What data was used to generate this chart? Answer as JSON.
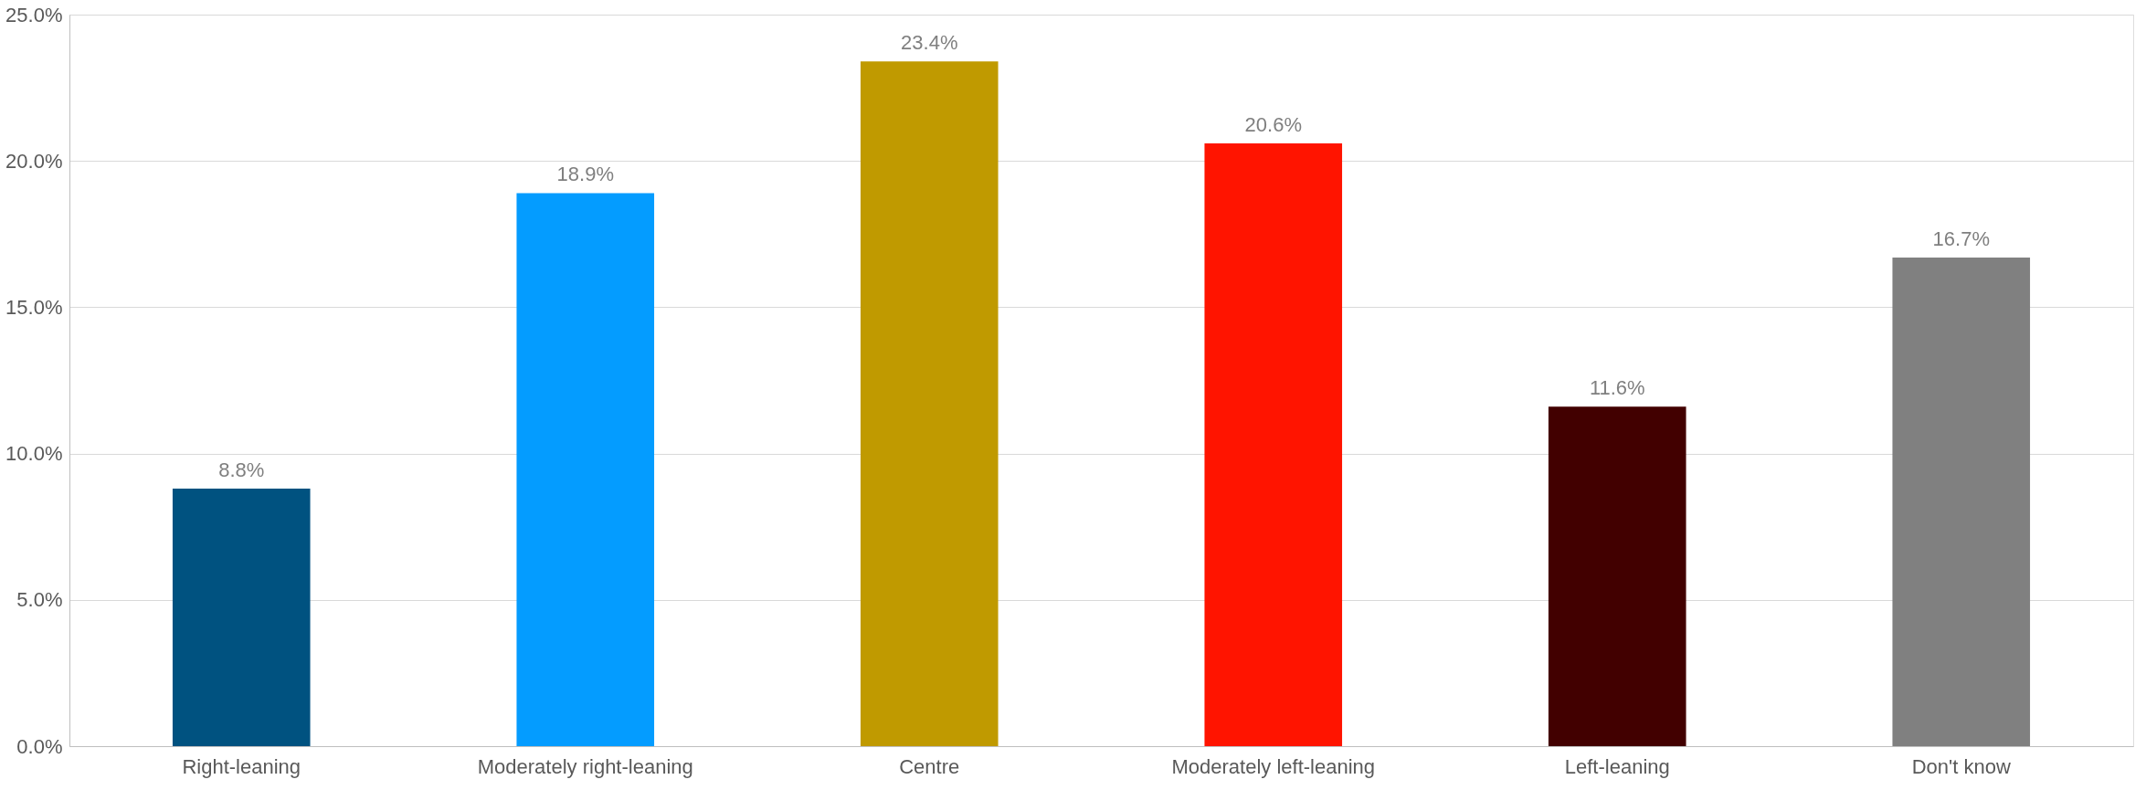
{
  "chart_data": {
    "type": "bar",
    "categories": [
      "Right-leaning",
      "Moderately right-leaning",
      "Centre",
      "Moderately left-leaning",
      "Left-leaning",
      "Don't know"
    ],
    "values": [
      8.8,
      18.9,
      23.4,
      20.6,
      11.6,
      16.7
    ],
    "value_labels": [
      "8.8%",
      "18.9%",
      "23.4%",
      "20.6%",
      "11.6%",
      "16.7%"
    ],
    "colors": [
      "#005280",
      "#049cff",
      "#c09a00",
      "#ff1400",
      "#420000",
      "#808080"
    ],
    "ylim": [
      0,
      25
    ],
    "yticks": [
      {
        "value": 0,
        "label": "0.0%"
      },
      {
        "value": 5,
        "label": "5.0%"
      },
      {
        "value": 10,
        "label": "10.0%"
      },
      {
        "value": 15,
        "label": "15.0%"
      },
      {
        "value": 20,
        "label": "20.0%"
      },
      {
        "value": 25,
        "label": "25.0%"
      }
    ],
    "grid": "y"
  }
}
